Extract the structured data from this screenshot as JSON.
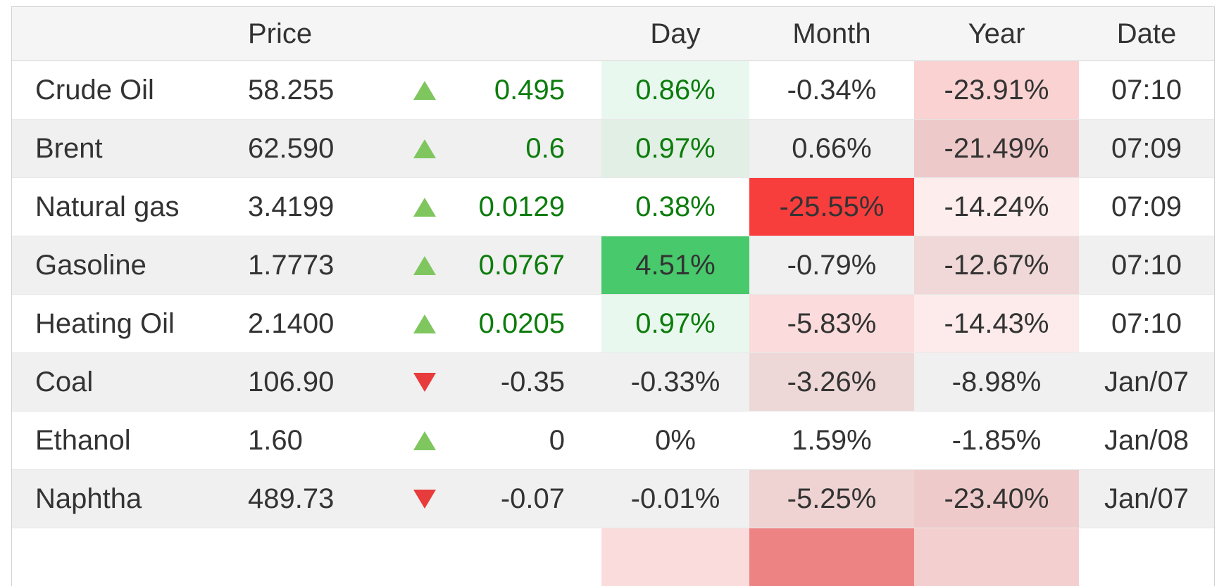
{
  "table": {
    "headers": {
      "name": "",
      "price": "Price",
      "arrow": "",
      "change": "",
      "day": "Day",
      "month": "Month",
      "year": "Year",
      "date": "Date"
    },
    "rows": [
      {
        "name": "Crude Oil",
        "price": "58.255",
        "direction": "up",
        "change": "0.495",
        "change_fg": "#0c7c0c",
        "day": "0.86%",
        "day_fg": "#0c7c0c",
        "day_bg": "#e9f8ee",
        "month": "-0.34%",
        "month_fg": "#333333",
        "month_bg": null,
        "year": "-23.91%",
        "year_bg": "#fad2d2",
        "date": "07:10",
        "row_bg": "#ffffff"
      },
      {
        "name": "Brent",
        "price": "62.590",
        "direction": "up",
        "change": "0.6",
        "change_fg": "#0c7c0c",
        "day": "0.97%",
        "day_fg": "#0c7c0c",
        "day_bg": "#e2efe5",
        "month": "0.66%",
        "month_fg": "#333333",
        "month_bg": null,
        "year": "-21.49%",
        "year_bg": "#eec9c9",
        "date": "07:09",
        "row_bg": "#f0f0f0"
      },
      {
        "name": "Natural gas",
        "price": "3.4199",
        "direction": "up",
        "change": "0.0129",
        "change_fg": "#0c7c0c",
        "day": "0.38%",
        "day_fg": "#0c7c0c",
        "day_bg": null,
        "month": "-25.55%",
        "month_fg": "#333333",
        "month_bg": "#f83d3d",
        "year": "-14.24%",
        "year_bg": "#fdeded",
        "date": "07:09",
        "row_bg": "#ffffff"
      },
      {
        "name": "Gasoline",
        "price": "1.7773",
        "direction": "up",
        "change": "0.0767",
        "change_fg": "#0c7c0c",
        "day": "4.51%",
        "day_fg": "#333333",
        "day_bg": "#47c96c",
        "month": "-0.79%",
        "month_fg": "#333333",
        "month_bg": null,
        "year": "-12.67%",
        "year_bg": "#efd8d7",
        "date": "07:10",
        "row_bg": "#f0f0f0"
      },
      {
        "name": "Heating Oil",
        "price": "2.1400",
        "direction": "up",
        "change": "0.0205",
        "change_fg": "#0c7c0c",
        "day": "0.97%",
        "day_fg": "#0c7c0c",
        "day_bg": "#e9f8ee",
        "month": "-5.83%",
        "month_fg": "#333333",
        "month_bg": "#fbdbdb",
        "year": "-14.43%",
        "year_bg": "#fcebea",
        "date": "07:10",
        "row_bg": "#ffffff"
      },
      {
        "name": "Coal",
        "price": "106.90",
        "direction": "down",
        "change": "-0.35",
        "change_fg": "#333333",
        "day": "-0.33%",
        "day_fg": "#333333",
        "day_bg": null,
        "month": "-3.26%",
        "month_fg": "#333333",
        "month_bg": "#eed8d7",
        "year": "-8.98%",
        "year_bg": null,
        "date": "Jan/07",
        "row_bg": "#f0f0f0"
      },
      {
        "name": "Ethanol",
        "price": "1.60",
        "direction": "up",
        "change": "0",
        "change_fg": "#333333",
        "day": "0%",
        "day_fg": "#333333",
        "day_bg": null,
        "month": "1.59%",
        "month_fg": "#333333",
        "month_bg": null,
        "year": "-1.85%",
        "year_bg": null,
        "date": "Jan/08",
        "row_bg": "#ffffff"
      },
      {
        "name": "Naphtha",
        "price": "489.73",
        "direction": "down",
        "change": "-0.07",
        "change_fg": "#333333",
        "day": "-0.01%",
        "day_fg": "#333333",
        "day_bg": null,
        "month": "-5.25%",
        "month_fg": "#333333",
        "month_bg": "#eed3d2",
        "year": "-23.40%",
        "year_bg": "#eecbca",
        "date": "Jan/07",
        "row_bg": "#f0f0f0"
      },
      {
        "name": "",
        "price": "",
        "direction": null,
        "change": "",
        "change_fg": "#333333",
        "day": "",
        "day_fg": "#333333",
        "day_bg": "#fbdcdc",
        "month": "",
        "month_fg": "#333333",
        "month_bg": "#ee8383",
        "year": "",
        "year_bg": "#f4cfcf",
        "date": "",
        "row_bg": "#ffffff"
      }
    ]
  },
  "icons": {
    "up": "triangle-up-icon",
    "down": "triangle-down-icon"
  },
  "colors": {
    "positive_text": "#0c7c0c",
    "neutral_text": "#333333",
    "strong_gain_bg": "#47c96c",
    "strong_loss_bg": "#f83d3d",
    "row_alt_bg": "#f0f0f0",
    "header_bg": "#f5f5f6",
    "up_arrow": "#7fc65f",
    "down_arrow": "#e83b3b"
  }
}
